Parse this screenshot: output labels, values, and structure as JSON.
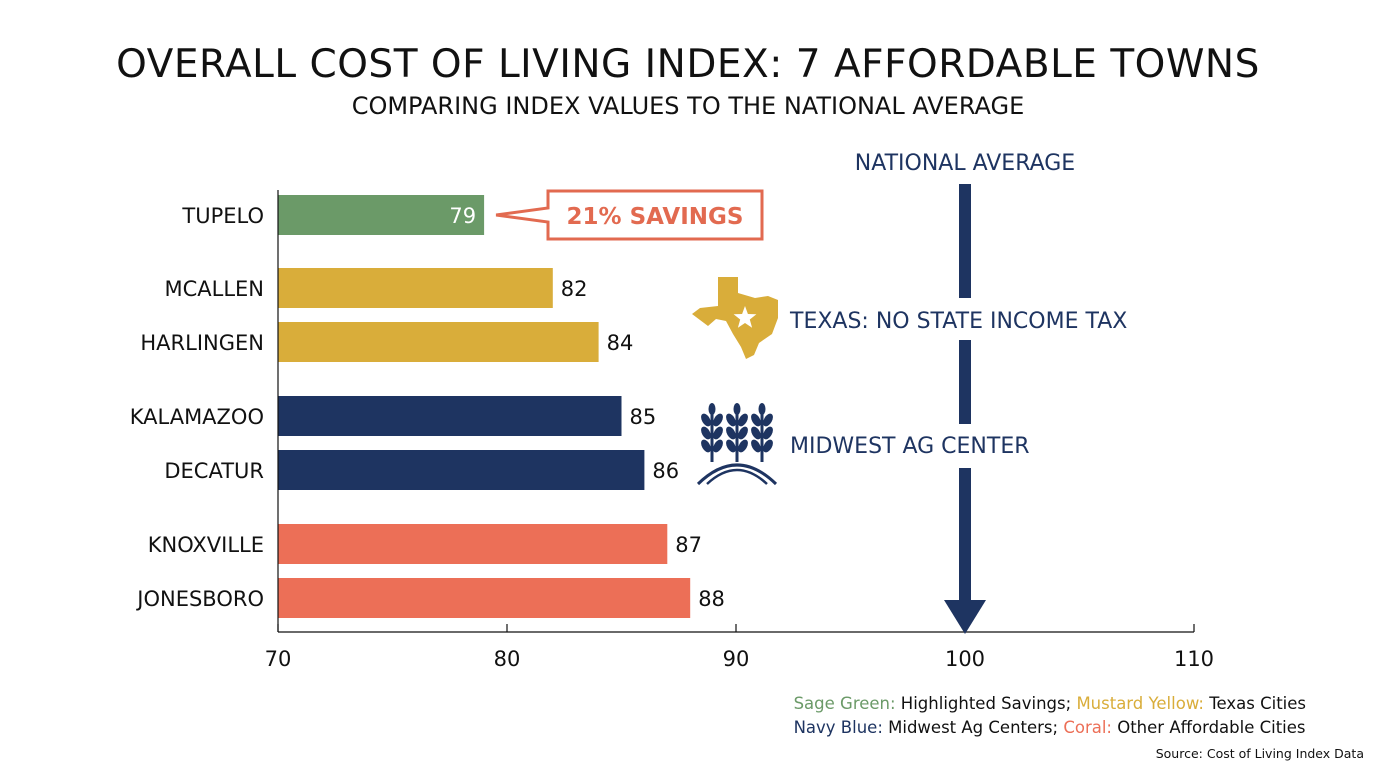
{
  "chart_data": {
    "type": "bar",
    "orientation": "horizontal",
    "title": "OVERALL COST OF LIVING INDEX: 7 AFFORDABLE TOWNS",
    "subtitle": "COMPARING INDEX VALUES TO THE NATIONAL AVERAGE",
    "categories": [
      "TUPELO",
      "MCALLEN",
      "HARLINGEN",
      "KALAMAZOO",
      "DECATUR",
      "KNOXVILLE",
      "JONESBORO"
    ],
    "values": [
      79,
      82,
      84,
      85,
      86,
      87,
      88
    ],
    "groups": [
      "highlight",
      "texas",
      "texas",
      "midwest",
      "midwest",
      "other",
      "other"
    ],
    "xlim": [
      70,
      110
    ],
    "xticks": [
      70,
      80,
      90,
      100,
      110
    ],
    "reference_line": {
      "value": 100,
      "label": "NATIONAL AVERAGE"
    },
    "callout": {
      "category": "TUPELO",
      "text": "21% SAVINGS"
    },
    "annotations": [
      {
        "text": "TEXAS: NO STATE INCOME TAX",
        "icon": "texas-state-icon"
      },
      {
        "text": "MIDWEST AG CENTER",
        "icon": "wheat-icon"
      }
    ],
    "colors": {
      "highlight": "#6b9a68",
      "texas": "#d9ad3a",
      "midwest": "#1e3461",
      "other": "#ec6f57",
      "callout": "#e26a50",
      "reference": "#1e3461"
    },
    "legend": {
      "placement": "bottom-right",
      "rows": [
        [
          {
            "key": "Sage Green:",
            "group": "highlight",
            "text": " Highlighted Savings; "
          },
          {
            "key": "Mustard Yellow:",
            "group": "texas",
            "text": " Texas Cities"
          }
        ],
        [
          {
            "key": "Navy Blue:",
            "group": "midwest",
            "text": " Midwest Ag Centers; "
          },
          {
            "key": "Coral:",
            "group": "other",
            "text": " Other Affordable Cities"
          }
        ]
      ]
    },
    "source": "Source: Cost of Living Index Data"
  }
}
